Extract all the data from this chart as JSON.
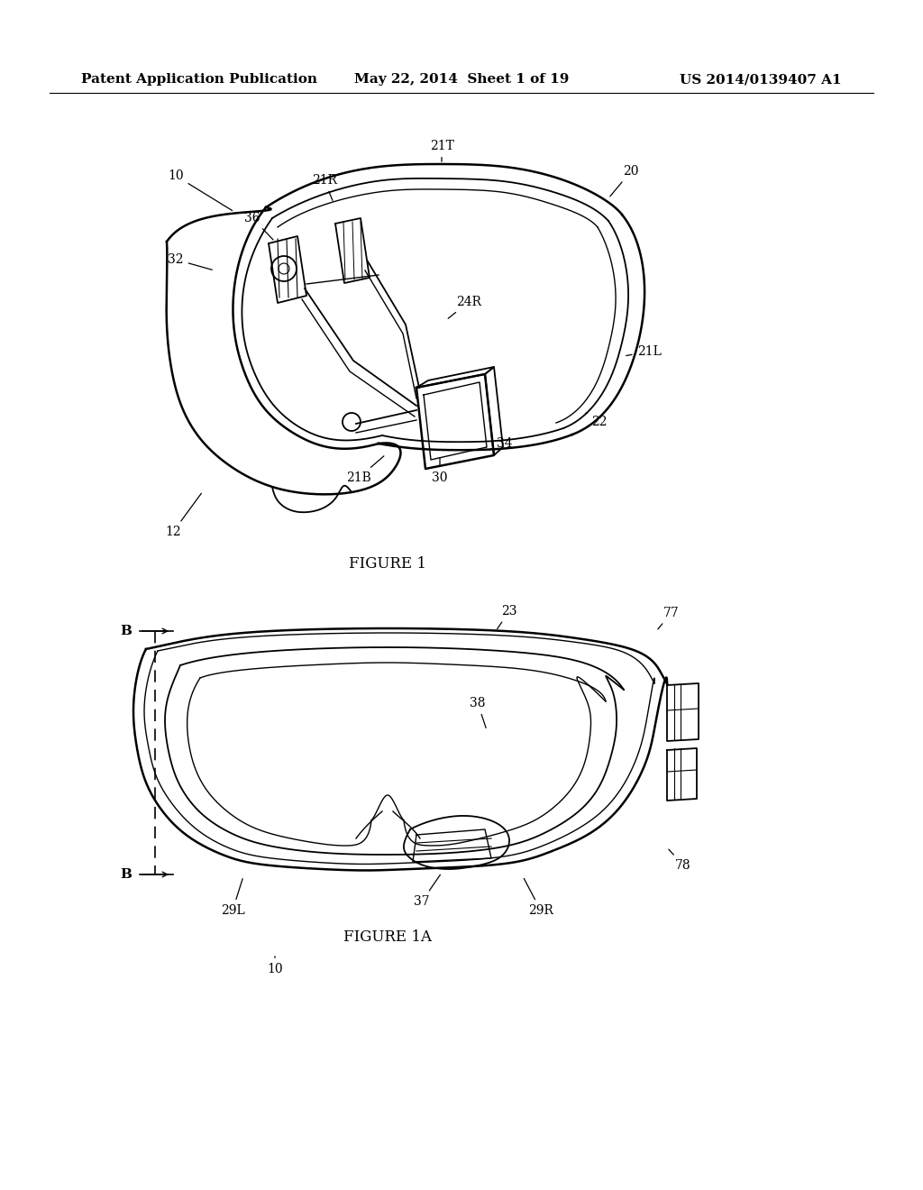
{
  "bg_color": "#ffffff",
  "header_left": "Patent Application Publication",
  "header_center": "May 22, 2014  Sheet 1 of 19",
  "header_right": "US 2014/0139407 A1",
  "header_fontsize": 11,
  "fig1_caption": "FIGURE 1",
  "fig1a_caption": "FIGURE 1A"
}
